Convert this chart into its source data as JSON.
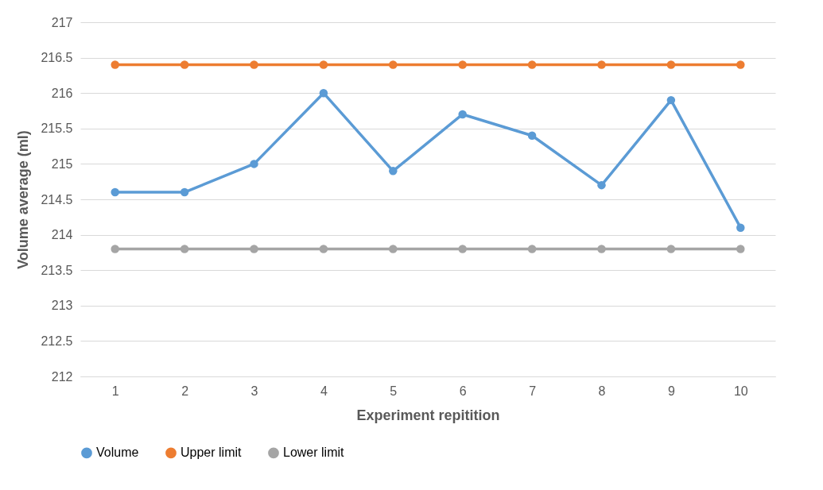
{
  "chart_data": {
    "type": "line",
    "xlabel": "Experiment repitition",
    "ylabel": "Volume average (ml)",
    "categories": [
      "1",
      "2",
      "3",
      "4",
      "5",
      "6",
      "7",
      "8",
      "9",
      "10"
    ],
    "series": [
      {
        "name": "Volume",
        "color": "#5b9bd5",
        "values": [
          214.6,
          214.6,
          215.0,
          216.0,
          214.9,
          215.7,
          215.4,
          214.7,
          215.9,
          214.1
        ]
      },
      {
        "name": "Upper limit",
        "color": "#ed7d31",
        "values": [
          216.4,
          216.4,
          216.4,
          216.4,
          216.4,
          216.4,
          216.4,
          216.4,
          216.4,
          216.4
        ]
      },
      {
        "name": "Lower limit",
        "color": "#a5a5a5",
        "values": [
          213.8,
          213.8,
          213.8,
          213.8,
          213.8,
          213.8,
          213.8,
          213.8,
          213.8,
          213.8
        ]
      }
    ],
    "ylim": [
      212,
      217
    ],
    "yticks": [
      212,
      212.5,
      213,
      213.5,
      214,
      214.5,
      215,
      215.5,
      216,
      216.5,
      217
    ],
    "grid": "y",
    "legend": "bottom",
    "marker": "circle",
    "line_style": "solid"
  }
}
